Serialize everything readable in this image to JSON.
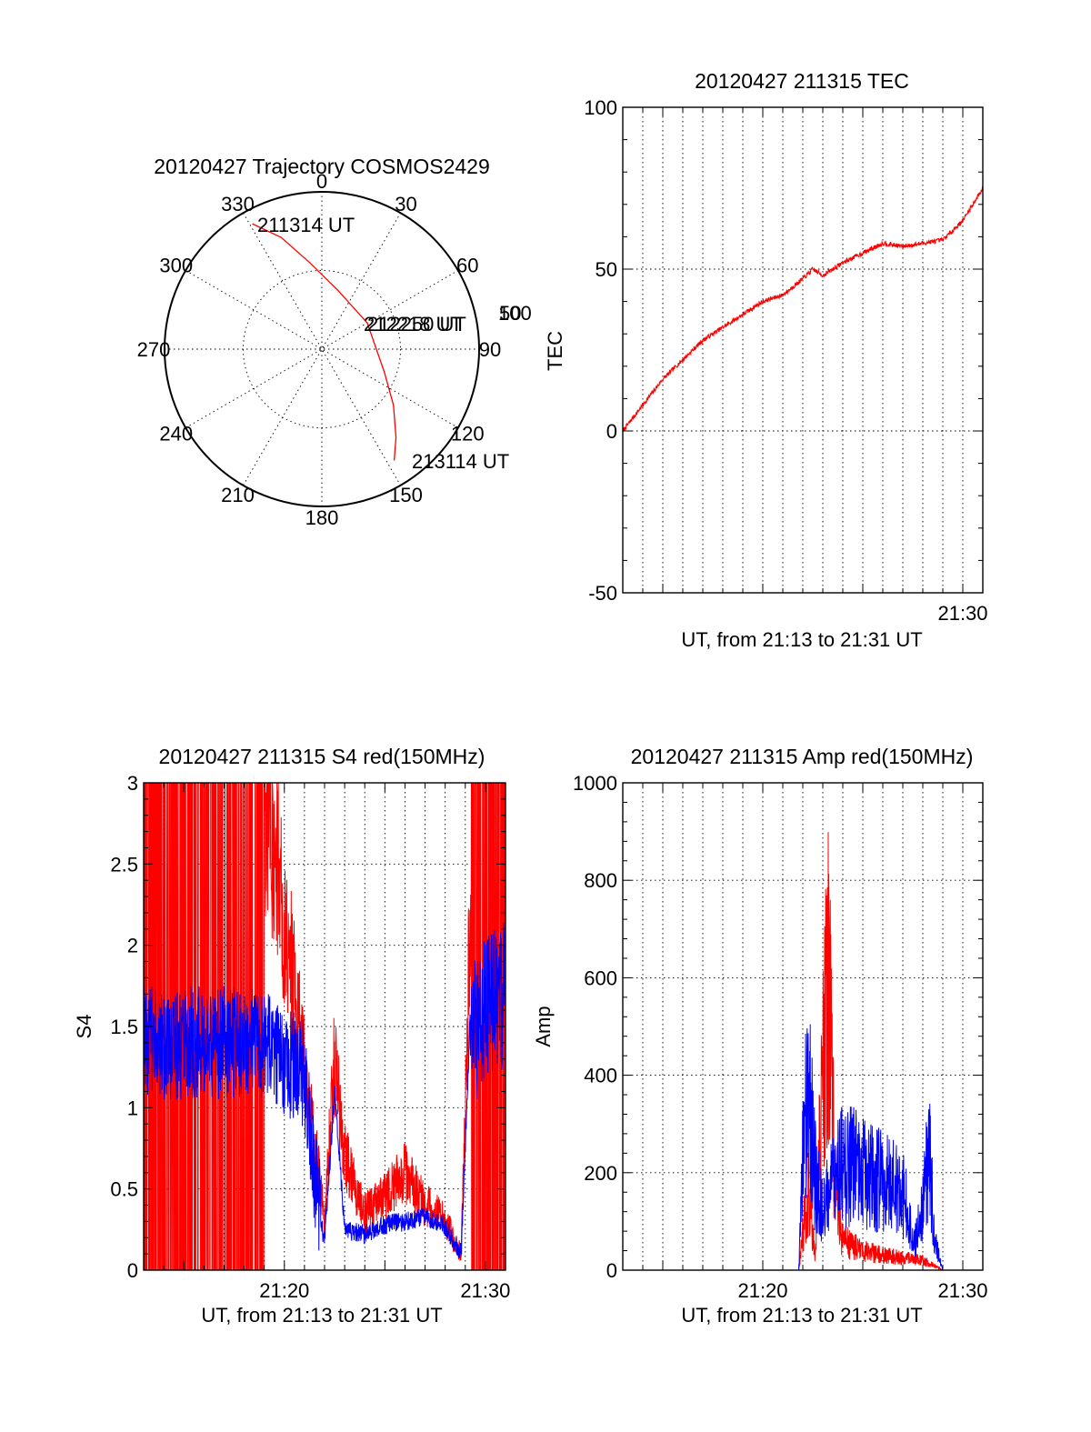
{
  "chart_data": [
    {
      "type": "polar",
      "title": "20120427 Trajectory COSMOS2429",
      "angle_labels": [
        "0",
        "30",
        "60",
        "90",
        "120",
        "150",
        "180",
        "210",
        "240",
        "270",
        "300",
        "330"
      ],
      "radial_labels": [
        "50",
        "100"
      ],
      "annotations": [
        "211314 UT",
        "212218 UT",
        "212250 UT",
        "213114 UT"
      ],
      "series": [
        {
          "color": "#ff0000",
          "points": [
            {
              "az": 331,
              "el": 8
            },
            {
              "az": 340,
              "el": 22
            },
            {
              "az": 352,
              "el": 40
            },
            {
              "az": 15,
              "el": 55
            },
            {
              "az": 60,
              "el": 60
            },
            {
              "az": 110,
              "el": 52
            },
            {
              "az": 128,
              "el": 38
            },
            {
              "az": 140,
              "el": 24
            },
            {
              "az": 147,
              "el": 14
            }
          ]
        }
      ]
    },
    {
      "type": "line",
      "title": "20120427 211315 TEC",
      "xlabel": "UT, from 21:13 to 21:31 UT",
      "ylabel": "TEC",
      "xlim": [
        13.0,
        31.0
      ],
      "ylim": [
        -50,
        100
      ],
      "yticks": [
        -50,
        0,
        50,
        100
      ],
      "xticks": [
        {
          "value": 30,
          "label": "21:30"
        }
      ],
      "grid": true,
      "series": [
        {
          "color": "#ff0000",
          "x": [
            13.0,
            14.0,
            15.0,
            16.0,
            17.0,
            18.0,
            19.0,
            20.0,
            21.0,
            22.0,
            22.5,
            23.0,
            24.0,
            25.0,
            26.0,
            27.0,
            28.0,
            29.0,
            30.0,
            31.0
          ],
          "y": [
            0,
            8,
            16,
            22,
            28,
            32,
            36,
            40,
            42,
            47,
            50,
            48,
            52,
            55,
            58,
            57,
            58,
            59,
            65,
            75
          ]
        }
      ]
    },
    {
      "type": "line",
      "title": "20120427 211315 S4 red(150MHz)",
      "xlabel": "UT, from 21:13 to 21:31 UT",
      "ylabel": "S4",
      "xlim": [
        13.0,
        31.0
      ],
      "ylim": [
        0,
        3
      ],
      "yticks": [
        0,
        0.5,
        1,
        1.5,
        2,
        2.5,
        3
      ],
      "xticks": [
        {
          "value": 20,
          "label": "21:20"
        },
        {
          "value": 30,
          "label": "21:30"
        }
      ],
      "grid": true,
      "series": [
        {
          "color": "#ff0000",
          "x": [
            13.0,
            19.0,
            20.0,
            21.0,
            21.8,
            22.0,
            22.5,
            23.0,
            24.0,
            25.0,
            26.0,
            27.0,
            28.0,
            28.8,
            29.2,
            30.0,
            31.0
          ],
          "y": [
            3.0,
            3.0,
            2.2,
            1.2,
            0.5,
            0.3,
            1.3,
            0.7,
            0.35,
            0.45,
            0.6,
            0.4,
            0.3,
            0.1,
            2.0,
            3.0,
            3.0
          ]
        },
        {
          "color": "#0000ff",
          "x": [
            13.0,
            15.0,
            17.0,
            19.0,
            20.0,
            21.0,
            21.8,
            22.0,
            22.5,
            23.0,
            24.0,
            25.0,
            26.0,
            27.0,
            28.0,
            28.8,
            29.2,
            30.0,
            31.0
          ],
          "y": [
            1.4,
            1.4,
            1.4,
            1.4,
            1.3,
            1.2,
            0.3,
            0.18,
            1.1,
            0.25,
            0.22,
            0.28,
            0.3,
            0.33,
            0.27,
            0.1,
            1.4,
            1.6,
            1.7
          ]
        }
      ]
    },
    {
      "type": "line",
      "title": "20120427 211315 Amp red(150MHz)",
      "xlabel": "UT, from 21:13 to 21:31 UT",
      "ylabel": "Amp",
      "xlim": [
        13.0,
        31.0
      ],
      "ylim": [
        0,
        1000
      ],
      "yticks": [
        0,
        200,
        400,
        600,
        800,
        1000
      ],
      "xticks": [
        {
          "value": 20,
          "label": "21:20"
        },
        {
          "value": 30,
          "label": "21:30"
        }
      ],
      "grid": true,
      "series": [
        {
          "color": "#ff0000",
          "x": [
            13.0,
            21.8,
            22.0,
            22.3,
            22.6,
            23.0,
            23.3,
            23.6,
            24.0,
            25.0,
            26.0,
            27.0,
            28.0,
            29.0,
            31.0
          ],
          "y": [
            0,
            0,
            80,
            160,
            30,
            400,
            620,
            150,
            60,
            40,
            30,
            25,
            20,
            0,
            0
          ]
        },
        {
          "color": "#0000ff",
          "x": [
            13.0,
            21.8,
            22.0,
            22.3,
            22.6,
            23.0,
            23.5,
            24.0,
            25.0,
            26.0,
            27.0,
            27.6,
            28.0,
            28.3,
            28.6,
            29.0,
            31.0
          ],
          "y": [
            0,
            0,
            250,
            380,
            200,
            120,
            180,
            220,
            200,
            180,
            160,
            60,
            120,
            260,
            60,
            0,
            0
          ]
        }
      ]
    }
  ]
}
